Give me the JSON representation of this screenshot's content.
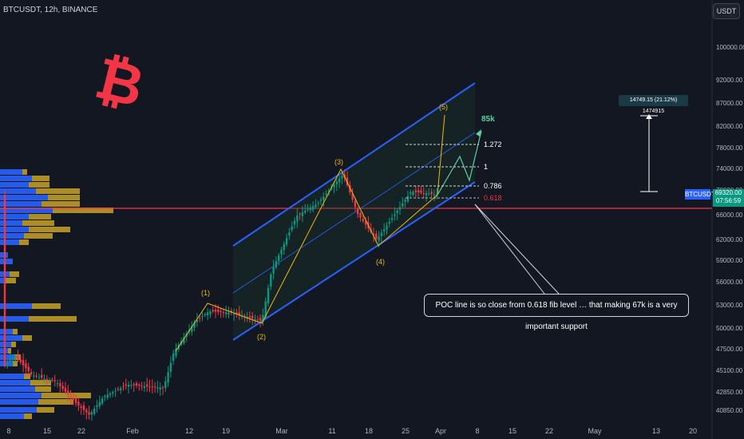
{
  "header": {
    "title": "BTCUSDT, 12h, BINANCE",
    "currency_button": "USDT"
  },
  "price_axis": {
    "ticks": [
      "100000.00",
      "92000.00",
      "87000.00",
      "82000.00",
      "78000.00",
      "74000.00",
      "70000.00",
      "66000.00",
      "62000.00",
      "59000.00",
      "56000.00",
      "53000.00",
      "50000.00",
      "47500.00",
      "45100.00",
      "42850.00",
      "40850.00"
    ],
    "symbol_tag": "BTCUSDT",
    "last_price": "69320.00",
    "countdown": "07:56:59"
  },
  "time_axis": {
    "ticks": [
      "8",
      "15",
      "22",
      "Feb",
      "12",
      "19",
      "Mar",
      "11",
      "18",
      "25",
      "Apr",
      "8",
      "15",
      "22",
      "May",
      "13",
      "20"
    ]
  },
  "wave_labels": {
    "w1": "(1)",
    "w2": "(2)",
    "w3": "(3)",
    "w4": "(4)",
    "w5": "(5)"
  },
  "fib_labels": {
    "f1272": "1.272",
    "f1": "1",
    "f786": "0.786",
    "f618": "0.618"
  },
  "target_label": "85k",
  "measure_label": "14749.15 (21.12%) 1474915",
  "annotation": "POC line is so close from 0.618 fib level … that making 67k is a very important support",
  "colors": {
    "up": "#089981",
    "down": "#f23645",
    "channel": "#2962ff",
    "poc": "#f23645",
    "wave": "#f0b90b",
    "logo": "#f23645"
  },
  "chart_data": {
    "type": "candlestick",
    "title": "BTCUSDT, 12h, BINANCE",
    "series": [
      {
        "name": "BTCUSDT",
        "close_path": [
          {
            "x": "Jan 8",
            "y": 46500
          },
          {
            "x": "Jan 11",
            "y": 45000
          },
          {
            "x": "Jan 15",
            "y": 42800
          },
          {
            "x": "Jan 19",
            "y": 41500
          },
          {
            "x": "Jan 22",
            "y": 40800
          },
          {
            "x": "Jan 23",
            "y": 39600
          },
          {
            "x": "Jan 26",
            "y": 41900
          },
          {
            "x": "Jan 30",
            "y": 43000
          },
          {
            "x": "Feb 5",
            "y": 42700
          },
          {
            "x": "Feb 8",
            "y": 45200
          },
          {
            "x": "Feb 12",
            "y": 48500
          },
          {
            "x": "Feb 15",
            "y": 52200
          },
          {
            "x": "Feb 19",
            "y": 52000
          },
          {
            "x": "Feb 23",
            "y": 50800
          },
          {
            "x": "Feb 28",
            "y": 61500
          },
          {
            "x": "Mar 5",
            "y": 67000
          },
          {
            "x": "Mar 9",
            "y": 68500
          },
          {
            "x": "Mar 13",
            "y": 73000
          },
          {
            "x": "Mar 17",
            "y": 66500
          },
          {
            "x": "Mar 20",
            "y": 61800
          },
          {
            "x": "Mar 24",
            "y": 66000
          },
          {
            "x": "Mar 27",
            "y": 70200
          },
          {
            "x": "Mar 30",
            "y": 69320
          }
        ]
      }
    ],
    "price_range": [
      39000,
      106000
    ],
    "waves": [
      {
        "label": "(1)",
        "y": 52500
      },
      {
        "label": "(2)",
        "y": 50600
      },
      {
        "label": "(3)",
        "y": 73800
      },
      {
        "label": "(4)",
        "y": 61500
      },
      {
        "label": "(5)",
        "y": 88500
      }
    ],
    "fibonacci": [
      {
        "level": "1.272",
        "y": 78600
      },
      {
        "level": "1",
        "y": 74500
      },
      {
        "level": "0.786",
        "y": 70000
      },
      {
        "level": "0.618",
        "y": 67800
      }
    ],
    "poc_price": 66400,
    "target": {
      "label": "85k",
      "y": 85000
    },
    "measurement": {
      "from": 69800,
      "to": 84500,
      "label": "14749.15 (21.12%) 1474915"
    },
    "volume_profile": "left side, largest bar at POC",
    "grid": false
  }
}
